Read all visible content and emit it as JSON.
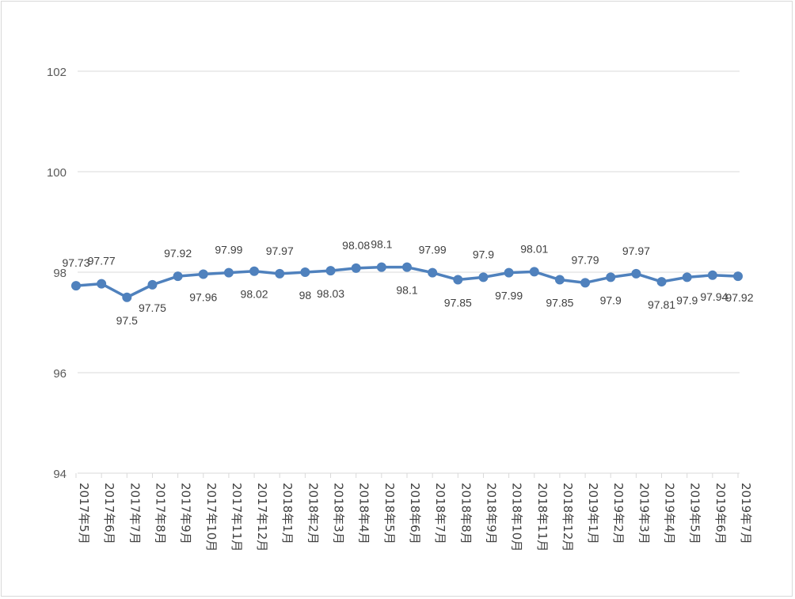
{
  "chart_data": {
    "type": "line",
    "title": "",
    "xlabel": "",
    "ylabel": "",
    "ylim": [
      94,
      102
    ],
    "yticks": [
      94,
      96,
      98,
      100,
      102
    ],
    "grid": true,
    "legend": "none",
    "categories": [
      "2017年5月",
      "2017年6月",
      "2017年7月",
      "2017年8月",
      "2017年9月",
      "2017年10月",
      "2017年11月",
      "2017年12月",
      "2018年1月",
      "2018年2月",
      "2018年3月",
      "2018年4月",
      "2018年5月",
      "2018年6月",
      "2018年7月",
      "2018年8月",
      "2018年9月",
      "2018年10月",
      "2018年11月",
      "2018年12月",
      "2019年1月",
      "2019年2月",
      "2019年3月",
      "2019年4月",
      "2019年5月",
      "2019年6月",
      "2019年7月"
    ],
    "series": [
      {
        "values": [
          97.73,
          97.77,
          97.5,
          97.75,
          97.92,
          97.96,
          97.99,
          98.02,
          97.97,
          98,
          98.03,
          98.08,
          98.1,
          98.1,
          97.99,
          97.85,
          97.9,
          97.99,
          98.01,
          97.85,
          97.79,
          97.9,
          97.97,
          97.81,
          97.9,
          97.94,
          97.92
        ],
        "labels": [
          "97.73",
          "97.77",
          "97.5",
          "97.75",
          "97.92",
          "97.96",
          "97.99",
          "98.02",
          "97.97",
          "98",
          "98.03",
          "98.08",
          "98.1",
          "98.1",
          "97.99",
          "97.85",
          "97.9",
          "97.99",
          "98.01",
          "97.85",
          "97.79",
          "97.9",
          "97.97",
          "97.81",
          "97.9",
          "97.94",
          "97.92"
        ],
        "label_pos": [
          "above",
          "above",
          "below",
          "below",
          "above",
          "below",
          "above",
          "below",
          "above",
          "below",
          "below",
          "above",
          "above",
          "below",
          "above",
          "below",
          "above",
          "below",
          "above",
          "below",
          "above",
          "below",
          "above",
          "below",
          "below",
          "right",
          "right"
        ],
        "color": "#4f81bd"
      }
    ]
  },
  "colors": {
    "line": "#4f81bd",
    "grid": "#d9d9d9",
    "border": "#d9d9d9"
  }
}
